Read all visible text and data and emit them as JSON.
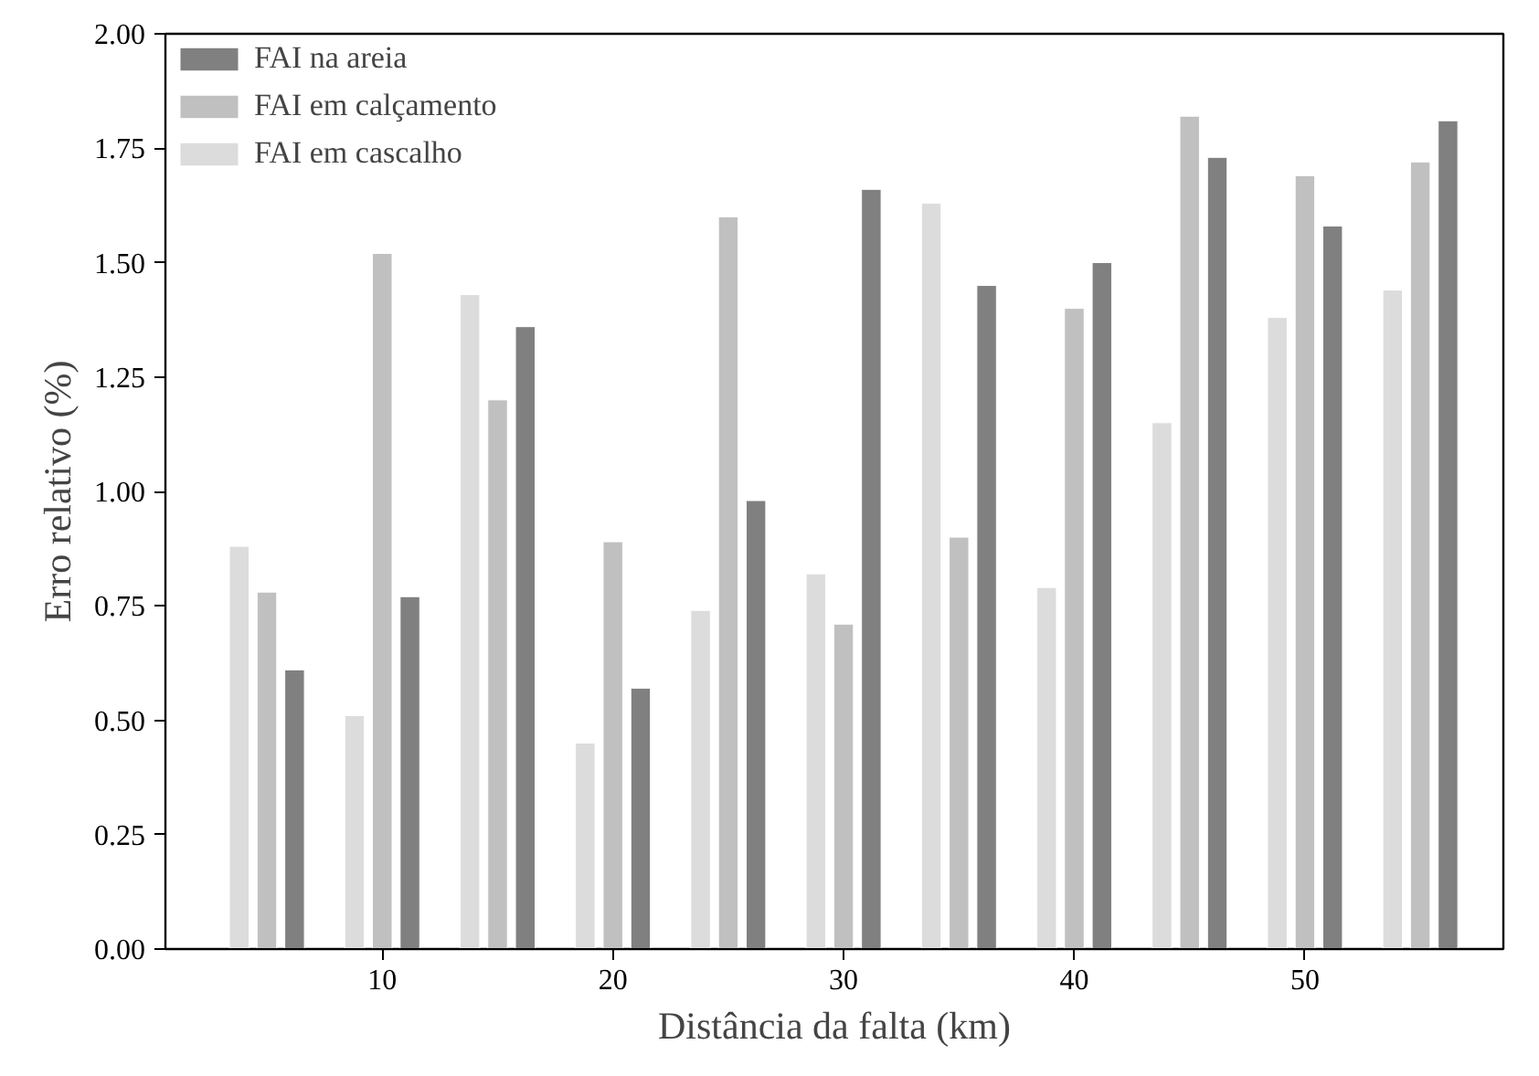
{
  "chart_data": {
    "type": "bar",
    "xlabel": "Distância da falta (km)",
    "ylabel": "Erro relativo (%)",
    "xlim": [
      0.6,
      58.6
    ],
    "xticks": [
      10,
      20,
      30,
      40,
      50
    ],
    "ylim": [
      0,
      2.0
    ],
    "yticks": [
      {
        "value": 0,
        "label": "0.00"
      },
      {
        "value": 0.25,
        "label": "0.25"
      },
      {
        "value": 0.5,
        "label": "0.50"
      },
      {
        "value": 0.75,
        "label": "0.75"
      },
      {
        "value": 1,
        "label": "1.00"
      },
      {
        "value": 1.25,
        "label": "1.25"
      },
      {
        "value": 1.5,
        "label": "1.50"
      },
      {
        "value": 1.75,
        "label": "1.75"
      },
      {
        "value": 2,
        "label": "2.00"
      }
    ],
    "grid": false,
    "legend": "top left",
    "series": [
      {
        "name": "FAI na areia",
        "color": "#808080",
        "x": [
          6.2,
          11.2,
          16.2,
          21.2,
          26.2,
          31.2,
          36.2,
          41.2,
          46.2,
          51.2,
          56.2
        ],
        "values": [
          0.61,
          0.77,
          1.36,
          0.57,
          0.98,
          1.66,
          1.45,
          1.5,
          1.73,
          1.58,
          1.81
        ]
      },
      {
        "name": "FAI em calçamento",
        "color": "#c0c0c0",
        "x": [
          5,
          10,
          15,
          20,
          25,
          30,
          35,
          40,
          45,
          50,
          55
        ],
        "values": [
          0.78,
          1.52,
          1.2,
          0.89,
          1.6,
          0.71,
          0.9,
          1.4,
          1.82,
          1.69,
          1.72
        ]
      },
      {
        "name": "FAI em cascalho",
        "color": "#dcdcdc",
        "x": [
          3.8,
          8.8,
          13.8,
          18.8,
          23.8,
          28.8,
          33.8,
          38.8,
          43.8,
          48.8,
          53.8
        ],
        "values": [
          0.88,
          0.51,
          1.43,
          0.45,
          0.74,
          0.82,
          1.63,
          0.79,
          1.15,
          1.38,
          1.44
        ]
      }
    ]
  }
}
